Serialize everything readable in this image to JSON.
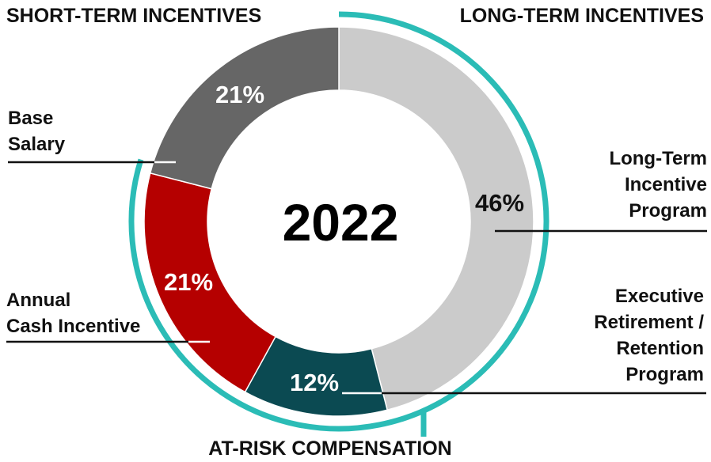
{
  "chart_data": {
    "type": "pie",
    "title": "2022",
    "headers": {
      "short_term": "SHORT-TERM INCENTIVES",
      "long_term": "LONG-TERM INCENTIVES",
      "at_risk": "AT-RISK COMPENSATION"
    },
    "slices": [
      {
        "label_lines": [
          "Long-Term",
          "Incentive",
          "Program"
        ],
        "value": 46,
        "display": "46%",
        "color": "#cbcbcb",
        "text_color": "#111111"
      },
      {
        "label_lines": [
          "Executive",
          "Retirement /",
          "Retention",
          "Program"
        ],
        "value": 12,
        "display": "12%",
        "color": "#0b4a52",
        "text_color": "#ffffff"
      },
      {
        "label_lines": [
          "Annual",
          "Cash Incentive"
        ],
        "value": 21,
        "display": "21%",
        "color": "#b50000",
        "text_color": "#ffffff"
      },
      {
        "label_lines": [
          "Base",
          "Salary"
        ],
        "value": 21,
        "display": "21%",
        "color": "#666666",
        "text_color": "#ffffff"
      }
    ],
    "accent_color": "#2bbcb6"
  }
}
